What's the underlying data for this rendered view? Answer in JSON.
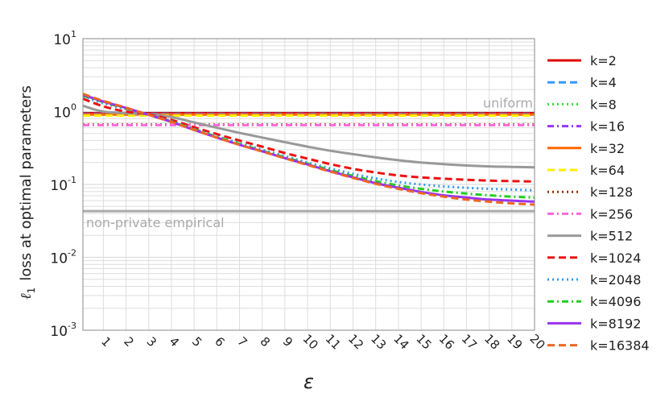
{
  "chart_data": {
    "type": "line",
    "xlabel": "ε",
    "ylabel": "ℓ1 loss at optimal parameters",
    "ylabel_main": "loss at optimal parameters",
    "ylabel_symbol": "ℓ",
    "ylabel_subscript": "1",
    "x_scale": "linear",
    "y_scale": "log",
    "xlim": [
      0.1,
      20
    ],
    "ylim": [
      0.001,
      10
    ],
    "x_ticks": [
      1,
      2,
      3,
      4,
      5,
      6,
      7,
      8,
      9,
      10,
      11,
      12,
      13,
      14,
      15,
      16,
      17,
      18,
      19,
      20
    ],
    "x_tick_labels": [
      "1",
      "2",
      "3",
      "4",
      "5",
      "6",
      "7",
      "8",
      "9",
      "10",
      "11",
      "12",
      "13",
      "14",
      "15",
      "16",
      "17",
      "18",
      "19",
      "20"
    ],
    "y_ticks": [
      {
        "value": 10,
        "base": "10",
        "exp": "1"
      },
      {
        "value": 1,
        "base": "10",
        "exp": "0"
      },
      {
        "value": 0.1,
        "base": "10",
        "exp": "-1"
      },
      {
        "value": 0.01,
        "base": "10",
        "exp": "-2"
      },
      {
        "value": 0.001,
        "base": "10",
        "exp": "-3"
      }
    ],
    "grid": true,
    "legend_position": "outside-right",
    "reference_lines": [
      {
        "label": "uniform",
        "y": 0.93,
        "color": "#aaaaaa",
        "label_anchor": "right"
      },
      {
        "label": "non-private empirical",
        "y": 0.043,
        "color": "#aaaaaa",
        "label_anchor": "left"
      }
    ],
    "series": [
      {
        "name": "k=2",
        "color": "#dd0000",
        "dash": "solid",
        "x": [
          0.1,
          1,
          2,
          3,
          5,
          10,
          15,
          20
        ],
        "y": [
          0.95,
          0.95,
          0.95,
          0.95,
          0.95,
          0.95,
          0.95,
          0.95
        ]
      },
      {
        "name": "k=4",
        "color": "#3399ff",
        "dash": "dashed",
        "x": [
          0.1,
          1,
          2,
          3,
          5,
          10,
          15,
          20
        ],
        "y": [
          0.93,
          0.93,
          0.93,
          0.93,
          0.93,
          0.93,
          0.93,
          0.93
        ]
      },
      {
        "name": "k=8",
        "color": "#33dd33",
        "dash": "dotted",
        "x": [
          0.1,
          1,
          2,
          3,
          5,
          10,
          15,
          20
        ],
        "y": [
          0.92,
          0.92,
          0.92,
          0.92,
          0.92,
          0.92,
          0.92,
          0.92
        ]
      },
      {
        "name": "k=16",
        "color": "#9933ff",
        "dash": "dashdot",
        "x": [
          0.1,
          1,
          2,
          3,
          5,
          10,
          15,
          20
        ],
        "y": [
          0.92,
          0.92,
          0.92,
          0.92,
          0.92,
          0.92,
          0.92,
          0.92
        ]
      },
      {
        "name": "k=32",
        "color": "#ff6600",
        "dash": "solid",
        "x": [
          0.1,
          1,
          2,
          3,
          5,
          10,
          15,
          20
        ],
        "y": [
          0.91,
          0.91,
          0.91,
          0.91,
          0.91,
          0.91,
          0.91,
          0.91
        ]
      },
      {
        "name": "k=64",
        "color": "#ffee00",
        "dash": "dashed",
        "x": [
          0.1,
          1,
          2,
          3,
          5,
          10,
          15,
          20
        ],
        "y": [
          0.88,
          0.88,
          0.88,
          0.88,
          0.88,
          0.88,
          0.88,
          0.88
        ]
      },
      {
        "name": "k=128",
        "color": "#993300",
        "dash": "dotted",
        "x": [
          0.1,
          1,
          2,
          3,
          5,
          10,
          15,
          20
        ],
        "y": [
          0.66,
          0.66,
          0.66,
          0.66,
          0.66,
          0.66,
          0.66,
          0.66
        ]
      },
      {
        "name": "k=256",
        "color": "#ff66dd",
        "dash": "dashdot",
        "x": [
          0.1,
          1,
          2,
          3,
          5,
          10,
          15,
          20
        ],
        "y": [
          0.65,
          0.65,
          0.65,
          0.65,
          0.65,
          0.65,
          0.65,
          0.65
        ]
      },
      {
        "name": "k=512",
        "color": "#999999",
        "dash": "solid",
        "x": [
          0.1,
          1,
          2,
          3,
          4,
          5,
          6,
          7,
          8,
          9,
          10,
          11,
          12,
          13,
          14,
          15,
          16,
          17,
          18,
          19,
          20
        ],
        "y": [
          1.2,
          1.0,
          0.95,
          0.92,
          0.84,
          0.71,
          0.6,
          0.51,
          0.44,
          0.38,
          0.33,
          0.29,
          0.26,
          0.235,
          0.215,
          0.2,
          0.19,
          0.182,
          0.177,
          0.174,
          0.172
        ]
      },
      {
        "name": "k=1024",
        "color": "#ee1111",
        "dash": "dashed",
        "x": [
          0.1,
          1,
          2,
          3,
          4,
          5,
          6,
          7,
          8,
          9,
          10,
          11,
          12,
          13,
          14,
          15,
          16,
          17,
          18,
          19,
          20
        ],
        "y": [
          1.5,
          1.18,
          1.0,
          0.92,
          0.77,
          0.61,
          0.49,
          0.4,
          0.33,
          0.27,
          0.226,
          0.19,
          0.164,
          0.146,
          0.133,
          0.125,
          0.12,
          0.116,
          0.113,
          0.111,
          0.11
        ]
      },
      {
        "name": "k=2048",
        "color": "#3399ee",
        "dash": "dotted",
        "x": [
          0.1,
          1,
          2,
          3,
          4,
          5,
          6,
          7,
          8,
          9,
          10,
          11,
          12,
          13,
          14,
          15,
          16,
          17,
          18,
          19,
          20
        ],
        "y": [
          1.6,
          1.3,
          1.08,
          0.91,
          0.74,
          0.58,
          0.46,
          0.37,
          0.3,
          0.245,
          0.2,
          0.166,
          0.14,
          0.121,
          0.108,
          0.1,
          0.094,
          0.09,
          0.087,
          0.085,
          0.083
        ]
      },
      {
        "name": "k=4096",
        "color": "#22cc22",
        "dash": "dashdot",
        "x": [
          0.1,
          1,
          2,
          3,
          4,
          5,
          6,
          7,
          8,
          9,
          10,
          11,
          12,
          13,
          14,
          15,
          16,
          17,
          18,
          19,
          20
        ],
        "y": [
          1.65,
          1.35,
          1.1,
          0.9,
          0.73,
          0.57,
          0.45,
          0.36,
          0.29,
          0.236,
          0.193,
          0.158,
          0.131,
          0.111,
          0.097,
          0.087,
          0.08,
          0.075,
          0.071,
          0.068,
          0.066
        ]
      },
      {
        "name": "k=8192",
        "color": "#9933ee",
        "dash": "solid",
        "x": [
          0.1,
          1,
          2,
          3,
          4,
          5,
          6,
          7,
          8,
          9,
          10,
          11,
          12,
          13,
          14,
          15,
          16,
          17,
          18,
          19,
          20
        ],
        "y": [
          1.7,
          1.37,
          1.12,
          0.9,
          0.72,
          0.56,
          0.44,
          0.35,
          0.285,
          0.23,
          0.188,
          0.152,
          0.125,
          0.104,
          0.09,
          0.079,
          0.071,
          0.066,
          0.062,
          0.06,
          0.058
        ]
      },
      {
        "name": "k=16384",
        "color": "#ee6622",
        "dash": "dashed",
        "x": [
          0.1,
          1,
          2,
          3,
          4,
          5,
          6,
          7,
          8,
          9,
          10,
          11,
          12,
          13,
          14,
          15,
          16,
          17,
          18,
          19,
          20
        ],
        "y": [
          1.75,
          1.4,
          1.13,
          0.9,
          0.72,
          0.56,
          0.44,
          0.35,
          0.283,
          0.228,
          0.185,
          0.15,
          0.123,
          0.102,
          0.087,
          0.076,
          0.068,
          0.062,
          0.058,
          0.055,
          0.053
        ]
      }
    ]
  }
}
